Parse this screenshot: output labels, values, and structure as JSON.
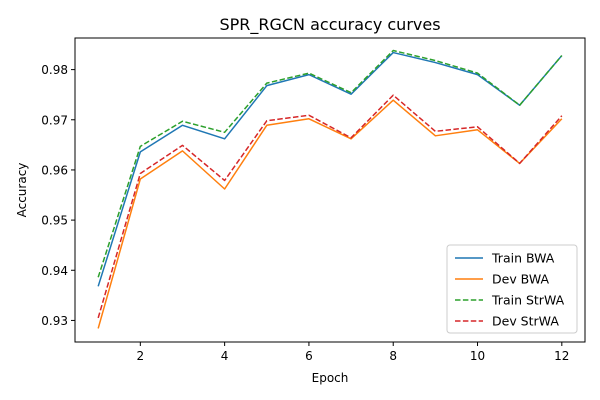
{
  "chart_data": {
    "type": "line",
    "title": "SPR_RGCN accuracy curves",
    "xlabel": "Epoch",
    "ylabel": "Accuracy",
    "xlim": [
      0.45,
      12.55
    ],
    "ylim": [
      0.9257,
      0.9863
    ],
    "xticks": [
      2,
      4,
      6,
      8,
      10,
      12
    ],
    "yticks": [
      0.93,
      0.94,
      0.95,
      0.96,
      0.97,
      0.98
    ],
    "ytick_labels": [
      "0.93",
      "0.94",
      "0.95",
      "0.96",
      "0.97",
      "0.98"
    ],
    "grid": false,
    "legend_position": "lower-right",
    "x": [
      1,
      2,
      3,
      4,
      5,
      6,
      7,
      8,
      9,
      10,
      11,
      12
    ],
    "series": [
      {
        "name": "Train BWA",
        "color": "#1f77b4",
        "dash": "solid",
        "values": [
          0.9368,
          0.9636,
          0.9689,
          0.9662,
          0.9768,
          0.979,
          0.9751,
          0.9834,
          0.9814,
          0.979,
          0.9729,
          0.9828
        ]
      },
      {
        "name": "Dev BWA",
        "color": "#ff7f0e",
        "dash": "solid",
        "values": [
          0.9284,
          0.9582,
          0.9638,
          0.9562,
          0.9689,
          0.9702,
          0.9662,
          0.9739,
          0.9668,
          0.968,
          0.9613,
          0.9702
        ]
      },
      {
        "name": "Train StrWA",
        "color": "#2ca02c",
        "dash": "dashed",
        "values": [
          0.9386,
          0.9647,
          0.9697,
          0.9675,
          0.9773,
          0.9793,
          0.9754,
          0.9838,
          0.9818,
          0.9793,
          0.9729,
          0.9828
        ]
      },
      {
        "name": "Dev StrWA",
        "color": "#d62728",
        "dash": "dashed",
        "values": [
          0.9305,
          0.9593,
          0.9649,
          0.9579,
          0.9698,
          0.9709,
          0.9664,
          0.9749,
          0.9677,
          0.9686,
          0.9613,
          0.9708
        ]
      }
    ]
  }
}
